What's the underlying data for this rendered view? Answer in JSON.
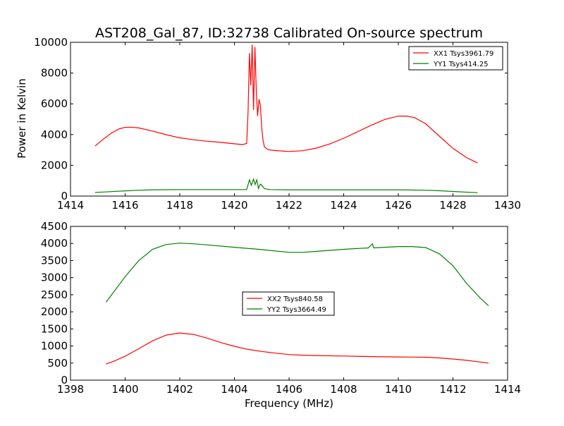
{
  "chart_data": [
    {
      "type": "line",
      "title": "AST208_Gal_87, ID:32738 Calibrated On-source spectrum",
      "xlabel": "",
      "ylabel": "Power in Kelvin",
      "xlim": [
        1414,
        1430
      ],
      "ylim": [
        0,
        10000
      ],
      "xticks": [
        1414,
        1416,
        1418,
        1420,
        1422,
        1424,
        1426,
        1428,
        1430
      ],
      "yticks": [
        0,
        2000,
        4000,
        6000,
        8000,
        10000
      ],
      "grid": false,
      "legend": "top-right",
      "series": [
        {
          "name": "XX1 Tsys3961.79",
          "color": "#ff0000",
          "x": [
            1414.9,
            1415.2,
            1415.5,
            1415.8,
            1416.0,
            1416.2,
            1416.5,
            1417.0,
            1417.5,
            1418.0,
            1418.5,
            1419.0,
            1419.5,
            1420.0,
            1420.3,
            1420.45,
            1420.5,
            1420.55,
            1420.6,
            1420.65,
            1420.7,
            1420.75,
            1420.8,
            1420.85,
            1420.9,
            1420.95,
            1421.0,
            1421.05,
            1421.1,
            1421.2,
            1421.3,
            1421.5,
            1422.0,
            1422.5,
            1423.0,
            1423.5,
            1424.0,
            1424.5,
            1425.0,
            1425.5,
            1426.0,
            1426.3,
            1426.6,
            1427.0,
            1427.5,
            1428.0,
            1428.5,
            1428.9
          ],
          "y": [
            3250,
            3700,
            4100,
            4380,
            4470,
            4480,
            4430,
            4230,
            3990,
            3790,
            3660,
            3570,
            3490,
            3400,
            3350,
            3420,
            5500,
            9300,
            7200,
            9850,
            5600,
            9700,
            6900,
            5200,
            6300,
            5900,
            4400,
            3600,
            3200,
            3050,
            3000,
            2960,
            2900,
            2950,
            3120,
            3400,
            3760,
            4180,
            4600,
            4980,
            5200,
            5200,
            5100,
            4700,
            3900,
            3100,
            2500,
            2150
          ]
        },
        {
          "name": "YY1 Tsys414.25",
          "color": "#008000",
          "x": [
            1414.9,
            1415.5,
            1416.0,
            1416.5,
            1417.0,
            1418.0,
            1419.0,
            1420.0,
            1420.45,
            1420.55,
            1420.62,
            1420.7,
            1420.76,
            1420.82,
            1420.88,
            1420.95,
            1421.0,
            1421.1,
            1421.3,
            1422.0,
            1424.0,
            1426.0,
            1427.0,
            1427.5,
            1428.0,
            1428.9
          ],
          "y": [
            240,
            290,
            340,
            380,
            410,
            420,
            420,
            420,
            420,
            1050,
            700,
            1100,
            750,
            1050,
            500,
            780,
            700,
            480,
            420,
            410,
            410,
            410,
            380,
            350,
            300,
            220
          ]
        }
      ]
    },
    {
      "type": "line",
      "title": "",
      "xlabel": "Frequency (MHz)",
      "ylabel": "",
      "xlim": [
        1398,
        1414
      ],
      "ylim": [
        0,
        4500
      ],
      "xticks": [
        1398,
        1400,
        1402,
        1404,
        1406,
        1408,
        1410,
        1412,
        1414
      ],
      "yticks": [
        0,
        500,
        1000,
        1500,
        2000,
        2500,
        3000,
        3500,
        4000,
        4500
      ],
      "grid": false,
      "legend": "center",
      "series": [
        {
          "name": "XX2 Tsys840.58",
          "color": "#ff0000",
          "x": [
            1399.3,
            1399.6,
            1400.0,
            1400.5,
            1401.0,
            1401.5,
            1402.0,
            1402.5,
            1403.0,
            1403.5,
            1404.0,
            1404.5,
            1405.0,
            1405.5,
            1406.0,
            1406.5,
            1407.0,
            1408.0,
            1409.0,
            1410.0,
            1410.5,
            1411.0,
            1411.5,
            1412.0,
            1412.5,
            1413.0,
            1413.3
          ],
          "y": [
            470,
            560,
            700,
            920,
            1150,
            1320,
            1380,
            1340,
            1230,
            1100,
            990,
            900,
            840,
            790,
            750,
            730,
            720,
            705,
            690,
            680,
            675,
            670,
            650,
            620,
            580,
            530,
            500
          ]
        },
        {
          "name": "YY2 Tsys3664.49",
          "color": "#008000",
          "x": [
            1399.3,
            1399.6,
            1400.0,
            1400.5,
            1401.0,
            1401.5,
            1402.0,
            1402.5,
            1403.0,
            1404.0,
            1405.0,
            1406.0,
            1406.5,
            1407.0,
            1408.0,
            1408.9,
            1409.05,
            1409.1,
            1409.3,
            1410.0,
            1410.5,
            1411.0,
            1411.5,
            1412.0,
            1412.5,
            1413.0,
            1413.3
          ],
          "y": [
            2280,
            2600,
            3030,
            3500,
            3830,
            3970,
            4010,
            3990,
            3960,
            3890,
            3820,
            3740,
            3740,
            3770,
            3830,
            3870,
            3990,
            3870,
            3880,
            3910,
            3910,
            3880,
            3700,
            3350,
            2830,
            2400,
            2180
          ]
        }
      ]
    }
  ]
}
